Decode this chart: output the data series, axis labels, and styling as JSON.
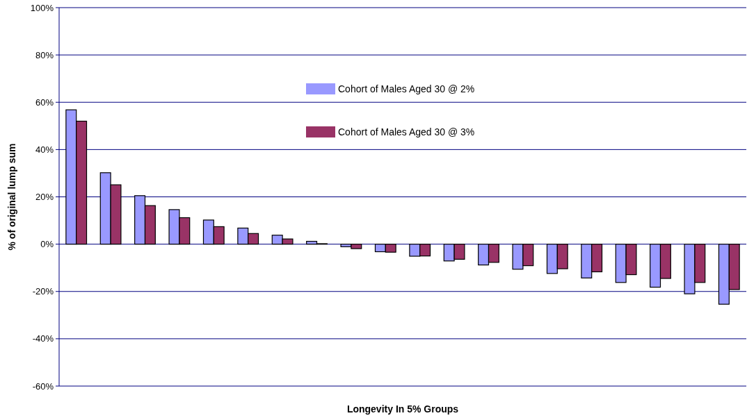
{
  "chart_data": {
    "type": "bar",
    "xlabel": "Longevity In 5% Groups",
    "ylabel": "% of original lump sum",
    "categories": [
      null,
      null,
      null,
      null,
      null,
      null,
      null,
      null,
      null,
      null,
      null,
      null,
      null,
      null,
      null,
      null,
      null,
      null,
      null,
      null
    ],
    "series": [
      {
        "name": "Cohort of Males Aged 30 @ 2%",
        "color": "#9999ff",
        "values": [
          56.8,
          30.2,
          20.5,
          14.6,
          10.2,
          6.8,
          3.8,
          1.2,
          -1.1,
          -3.2,
          -5.1,
          -7.1,
          -8.8,
          -10.6,
          -12.4,
          -14.3,
          -16.2,
          -18.2,
          -21.0,
          -25.4
        ]
      },
      {
        "name": "Cohort of Males Aged 30 @ 3%",
        "color": "#993366",
        "values": [
          52.0,
          25.1,
          16.3,
          11.2,
          7.4,
          4.5,
          2.2,
          0.2,
          -1.9,
          -3.4,
          -5.0,
          -6.4,
          -7.7,
          -9.1,
          -10.4,
          -11.7,
          -12.9,
          -14.5,
          -16.2,
          -19.2
        ]
      }
    ],
    "ylim": [
      -60,
      100
    ],
    "yticks": [
      {
        "value": -60,
        "label": "-60%"
      },
      {
        "value": -40,
        "label": "-40%"
      },
      {
        "value": -20,
        "label": "-20%"
      },
      {
        "value": 0,
        "label": "0%"
      },
      {
        "value": 20,
        "label": "20%"
      },
      {
        "value": 40,
        "label": "40%"
      },
      {
        "value": 60,
        "label": "60%"
      },
      {
        "value": 80,
        "label": "80%"
      },
      {
        "value": 100,
        "label": "100%"
      }
    ],
    "grid": "y",
    "legend": "top"
  }
}
